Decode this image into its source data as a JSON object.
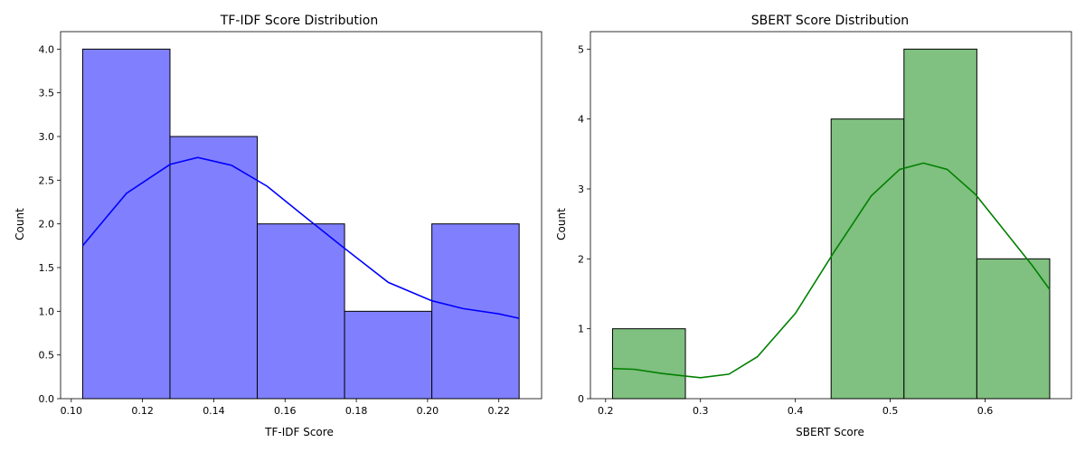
{
  "chart_data": [
    {
      "type": "bar",
      "subtype": "histogram",
      "title": "TF-IDF Score Distribution",
      "xlabel": "TF-IDF Score",
      "ylabel": "Count",
      "bin_edges": [
        0.1032,
        0.1277,
        0.1522,
        0.1767,
        0.2012,
        0.2257
      ],
      "counts": [
        4,
        3,
        2,
        1,
        2
      ],
      "kde": {
        "x": [
          0.1032,
          0.1155,
          0.1277,
          0.1355,
          0.145,
          0.155,
          0.165,
          0.1767,
          0.189,
          0.2012,
          0.21,
          0.22,
          0.2257
        ],
        "y": [
          1.75,
          2.35,
          2.68,
          2.76,
          2.67,
          2.43,
          2.1,
          1.72,
          1.33,
          1.12,
          1.03,
          0.97,
          0.92
        ]
      },
      "xlim": [
        0.097,
        0.232
      ],
      "ylim": [
        0,
        4.2
      ],
      "xticks": [
        0.1,
        0.12,
        0.14,
        0.16,
        0.18,
        0.2,
        0.22
      ],
      "xtick_labels": [
        "0.10",
        "0.12",
        "0.14",
        "0.16",
        "0.18",
        "0.20",
        "0.22"
      ],
      "yticks": [
        0.0,
        0.5,
        1.0,
        1.5,
        2.0,
        2.5,
        3.0,
        3.5,
        4.0
      ],
      "ytick_labels": [
        "0.0",
        "0.5",
        "1.0",
        "1.5",
        "2.0",
        "2.5",
        "3.0",
        "3.5",
        "4.0"
      ],
      "bar_color": "#8080ff",
      "line_color": "#0000ff",
      "grid": false
    },
    {
      "type": "bar",
      "subtype": "histogram",
      "title": "SBERT Score Distribution",
      "xlabel": "SBERT Score",
      "ylabel": "Count",
      "bin_edges": [
        0.2073,
        0.2841,
        0.3609,
        0.4377,
        0.5145,
        0.5913,
        0.6681
      ],
      "counts": [
        1,
        0,
        0,
        4,
        5,
        2
      ],
      "kde": {
        "x": [
          0.2073,
          0.23,
          0.26,
          0.3,
          0.33,
          0.36,
          0.4,
          0.44,
          0.48,
          0.51,
          0.535,
          0.56,
          0.59,
          0.62,
          0.65,
          0.6681
        ],
        "y": [
          0.43,
          0.42,
          0.36,
          0.3,
          0.35,
          0.6,
          1.22,
          2.08,
          2.9,
          3.28,
          3.37,
          3.28,
          2.92,
          2.41,
          1.9,
          1.56
        ]
      },
      "xlim": [
        0.184,
        0.691
      ],
      "ylim": [
        0,
        5.25
      ],
      "xticks": [
        0.2,
        0.3,
        0.4,
        0.5,
        0.6
      ],
      "xtick_labels": [
        "0.2",
        "0.3",
        "0.4",
        "0.5",
        "0.6"
      ],
      "yticks": [
        0,
        1,
        2,
        3,
        4,
        5
      ],
      "ytick_labels": [
        "0",
        "1",
        "2",
        "3",
        "4",
        "5"
      ],
      "bar_color": "#80c080",
      "line_color": "#008000",
      "grid": false
    }
  ]
}
